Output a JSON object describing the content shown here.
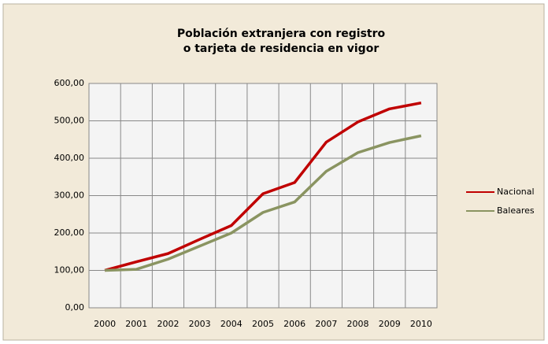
{
  "chart_data": {
    "type": "line",
    "title": [
      "Población extranjera  con registro",
      "o tarjeta de residencia en vigor"
    ],
    "categories": [
      "2000",
      "2001",
      "2002",
      "2003",
      "2004",
      "2005",
      "2006",
      "2007",
      "2008",
      "2009",
      "2010"
    ],
    "series": [
      {
        "name": "Nacional",
        "color": "#c00000",
        "values": [
          100,
          123,
          145,
          183,
          220,
          305,
          335,
          443,
          497,
          532,
          548
        ]
      },
      {
        "name": "Baleares",
        "color": "#8a9461",
        "values": [
          100,
          103,
          130,
          165,
          200,
          255,
          283,
          365,
          415,
          442,
          460
        ]
      }
    ],
    "ylim": [
      0,
      600
    ],
    "yticks": [
      {
        "value": 0,
        "label": "0,00"
      },
      {
        "value": 100,
        "label": "100,00"
      },
      {
        "value": 200,
        "label": "200,00"
      },
      {
        "value": 300,
        "label": "300,00"
      },
      {
        "value": 400,
        "label": "400,00"
      },
      {
        "value": 500,
        "label": "500,00"
      },
      {
        "value": 600,
        "label": "600,00"
      }
    ],
    "grid": true,
    "legend": "right"
  }
}
